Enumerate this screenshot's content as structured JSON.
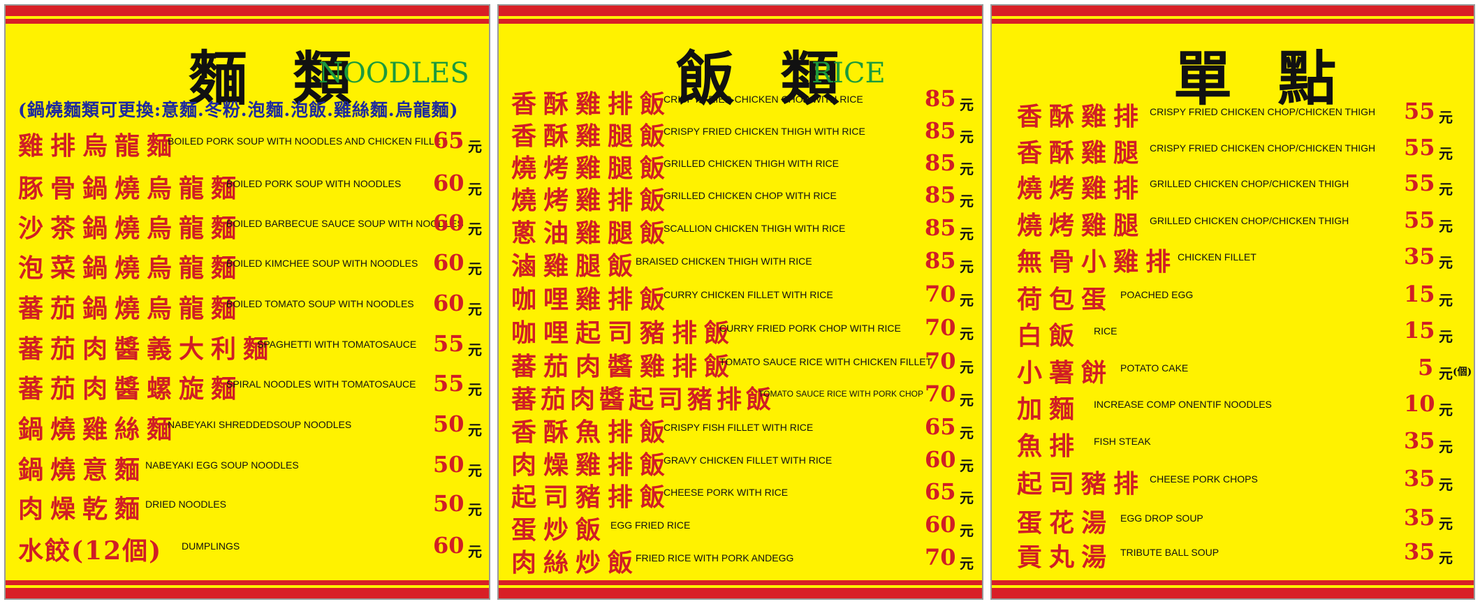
{
  "panels": [
    {
      "title_zh": "麵 類",
      "title_en": "NOODLES",
      "note": "(鍋燒麵類可更換:意麵.冬粉.泡麵.泡飯.雞絲麵.烏龍麵)",
      "items": [
        {
          "zh": "雞排烏龍麵",
          "en": "BOILED PORK SOUP WITH NOODLES AND CHICKEN FILLET",
          "price": "65",
          "unit": "元"
        },
        {
          "zh": "豚骨鍋燒烏龍麵",
          "en": "BOILED PORK SOUP WITH NOODLES",
          "price": "60",
          "unit": "元"
        },
        {
          "zh": "沙茶鍋燒烏龍麵",
          "en": "BOILED BARBECUE SAUCE SOUP WITH NOODLES",
          "price": "60",
          "unit": "元"
        },
        {
          "zh": "泡菜鍋燒烏龍麵",
          "en": "BOILED KIMCHEE SOUP WITH NOODLES",
          "price": "60",
          "unit": "元"
        },
        {
          "zh": "蕃茄鍋燒烏龍麵",
          "en": "BOILED TOMATO SOUP WITH NOODLES",
          "price": "60",
          "unit": "元"
        },
        {
          "zh": "蕃茄肉醬義大利麵",
          "en": "SPAGHETTI WITH TOMATOSAUCE",
          "price": "55",
          "unit": "元"
        },
        {
          "zh": "蕃茄肉醬螺旋麵",
          "en": "SPIRAL NOODLES WITH TOMATOSAUCE",
          "price": "55",
          "unit": "元"
        },
        {
          "zh": "鍋燒雞絲麵",
          "en": "NABEYAKI SHREDDEDSOUP NOODLES",
          "price": "50",
          "unit": "元"
        },
        {
          "zh": "鍋燒意麵",
          "en": "NABEYAKI EGG SOUP NOODLES",
          "price": "50",
          "unit": "元"
        },
        {
          "zh": "肉燥乾麵",
          "en": "DRIED NOODLES",
          "price": "50",
          "unit": "元"
        },
        {
          "zh": "水餃(12個)",
          "en": "DUMPLINGS",
          "price": "60",
          "unit": "元"
        }
      ]
    },
    {
      "title_zh": "飯 類",
      "title_en": "RICE",
      "items": [
        {
          "zh": "香酥雞排飯",
          "en": "CRISPY FRIED CHICKEN CHOP WITH RICE",
          "price": "85",
          "unit": "元"
        },
        {
          "zh": "香酥雞腿飯",
          "en": "CRISPY FRIED CHICKEN THIGH WITH RICE",
          "price": "85",
          "unit": "元"
        },
        {
          "zh": "燒烤雞腿飯",
          "en": "GRILLED CHICKEN THIGH WITH RICE",
          "price": "85",
          "unit": "元"
        },
        {
          "zh": "燒烤雞排飯",
          "en": "GRILLED CHICKEN CHOP WITH RICE",
          "price": "85",
          "unit": "元"
        },
        {
          "zh": "蔥油雞腿飯",
          "en": "SCALLION CHICKEN THIGH WITH RICE",
          "price": "85",
          "unit": "元"
        },
        {
          "zh": "滷雞腿飯",
          "en": "BRAISED CHICKEN THIGH WITH RICE",
          "price": "85",
          "unit": "元"
        },
        {
          "zh": "咖哩雞排飯",
          "en": "CURRY CHICKEN FILLET WITH RICE",
          "price": "70",
          "unit": "元"
        },
        {
          "zh": "咖哩起司豬排飯",
          "en": "CURRY FRIED PORK CHOP WITH RICE",
          "price": "70",
          "unit": "元"
        },
        {
          "zh": "蕃茄肉醬雞排飯",
          "en": "TOMATO SAUCE RICE WITH CHICKEN FILLET",
          "price": "70",
          "unit": "元"
        },
        {
          "zh": "蕃茄肉醬起司豬排飯",
          "en": "TOMATO SAUCE RICE WITH PORK CHOP",
          "price": "70",
          "unit": "元"
        },
        {
          "zh": "香酥魚排飯",
          "en": "CRISPY FISH FILLET WITH RICE",
          "price": "65",
          "unit": "元"
        },
        {
          "zh": "肉燥雞排飯",
          "en": "GRAVY CHICKEN FILLET WITH RICE",
          "price": "60",
          "unit": "元"
        },
        {
          "zh": "起司豬排飯",
          "en": "CHEESE PORK WITH RICE",
          "price": "65",
          "unit": "元"
        },
        {
          "zh": "蛋炒飯",
          "en": "EGG FRIED RICE",
          "price": "60",
          "unit": "元"
        },
        {
          "zh": "肉絲炒飯",
          "en": "FRIED RICE WITH PORK ANDEGG",
          "price": "70",
          "unit": "元"
        }
      ]
    },
    {
      "title_zh": "單 點",
      "items": [
        {
          "zh": "香酥雞排",
          "en": "CRISPY FRIED CHICKEN CHOP/CHICKEN THIGH",
          "price": "55",
          "unit": "元"
        },
        {
          "zh": "香酥雞腿",
          "en": "CRISPY FRIED CHICKEN CHOP/CHICKEN THIGH",
          "price": "55",
          "unit": "元"
        },
        {
          "zh": "燒烤雞排",
          "en": "GRILLED CHICKEN CHOP/CHICKEN THIGH",
          "price": "55",
          "unit": "元"
        },
        {
          "zh": "燒烤雞腿",
          "en": "GRILLED CHICKEN CHOP/CHICKEN THIGH",
          "price": "55",
          "unit": "元"
        },
        {
          "zh": "無骨小雞排",
          "en": "CHICKEN FILLET",
          "price": "35",
          "unit": "元"
        },
        {
          "zh": "荷包蛋",
          "en": "POACHED EGG",
          "price": "15",
          "unit": "元"
        },
        {
          "zh": "白飯",
          "en": "RICE",
          "price": "15",
          "unit": "元"
        },
        {
          "zh": "小薯餅",
          "en": "POTATO CAKE",
          "price": "5",
          "unit": "元",
          "extra": "(個)"
        },
        {
          "zh": "加麵",
          "en": "INCREASE COMP ONENTIF NOODLES",
          "price": "10",
          "unit": "元"
        },
        {
          "zh": "魚排",
          "en": "FISH STEAK",
          "price": "35",
          "unit": "元"
        },
        {
          "zh": "起司豬排",
          "en": "CHEESE PORK CHOPS",
          "price": "35",
          "unit": "元"
        },
        {
          "zh": "蛋花湯",
          "en": "EGG DROP SOUP",
          "price": "35",
          "unit": "元"
        },
        {
          "zh": "貢丸湯",
          "en": "TRIBUTE BALL SOUP",
          "price": "35",
          "unit": "元"
        }
      ]
    }
  ],
  "colors": {
    "background": "#fff200",
    "band": "#d81f26",
    "item_zh": "#d01e25",
    "price": "#d01e25",
    "title_en": "#1c9a3c",
    "note": "#1d2a9e"
  }
}
